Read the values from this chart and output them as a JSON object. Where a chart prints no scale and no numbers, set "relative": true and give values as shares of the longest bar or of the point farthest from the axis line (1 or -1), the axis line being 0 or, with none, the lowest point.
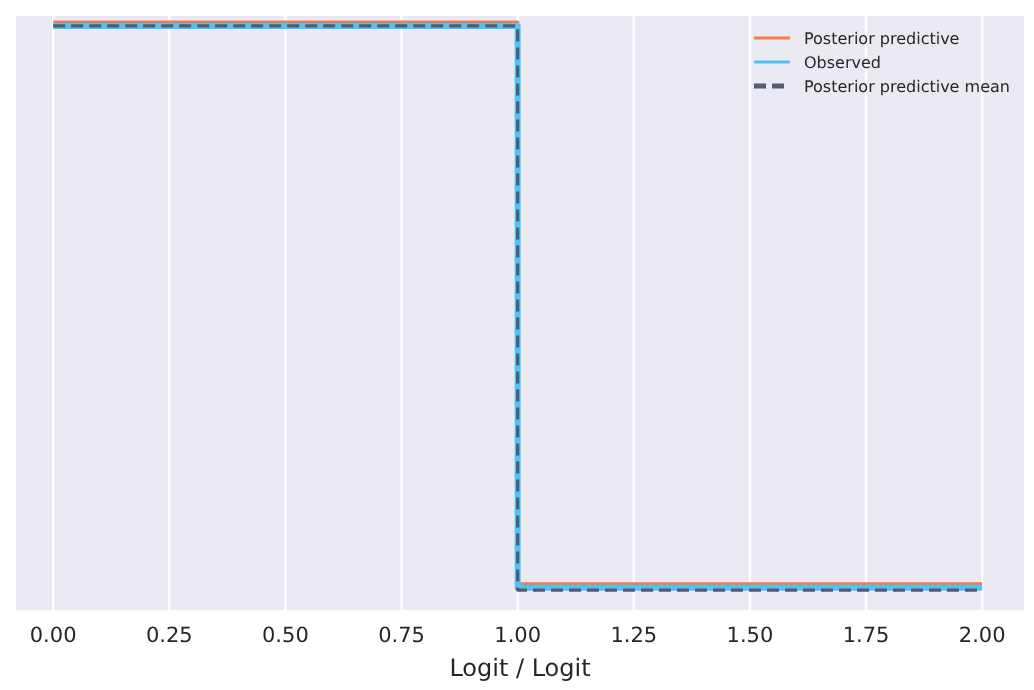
{
  "chart_data": {
    "type": "step",
    "xlabel": "Logit / Logit",
    "relative": true,
    "x": [
      0,
      1,
      2
    ],
    "xlim": [
      -0.08,
      2.09
    ],
    "xticks": [
      {
        "value": 0,
        "label": "0.00"
      },
      {
        "value": 0.25,
        "label": "0.25"
      },
      {
        "value": 0.5,
        "label": "0.50"
      },
      {
        "value": 0.75,
        "label": "0.75"
      },
      {
        "value": 1,
        "label": "1.00"
      },
      {
        "value": 1.25,
        "label": "1.25"
      },
      {
        "value": 1.5,
        "label": "1.50"
      },
      {
        "value": 1.75,
        "label": "1.75"
      },
      {
        "value": 2,
        "label": "2.00"
      }
    ],
    "grid": "x",
    "tick_labels": "x",
    "legend": "top right",
    "series": [
      {
        "name": "Posterior predictive",
        "color": "#f37c4e",
        "values": [
          1,
          0.011,
          0.011
        ],
        "line_style": "solid"
      },
      {
        "name": "Observed",
        "color": "#4fc3f7",
        "values": [
          0.993,
          0.004,
          0.004
        ],
        "line_style": "solid"
      },
      {
        "name": "Posterior predictive mean",
        "color": "#505d6e",
        "values": [
          0.993,
          0,
          0
        ],
        "line_style": "dashed"
      }
    ]
  }
}
